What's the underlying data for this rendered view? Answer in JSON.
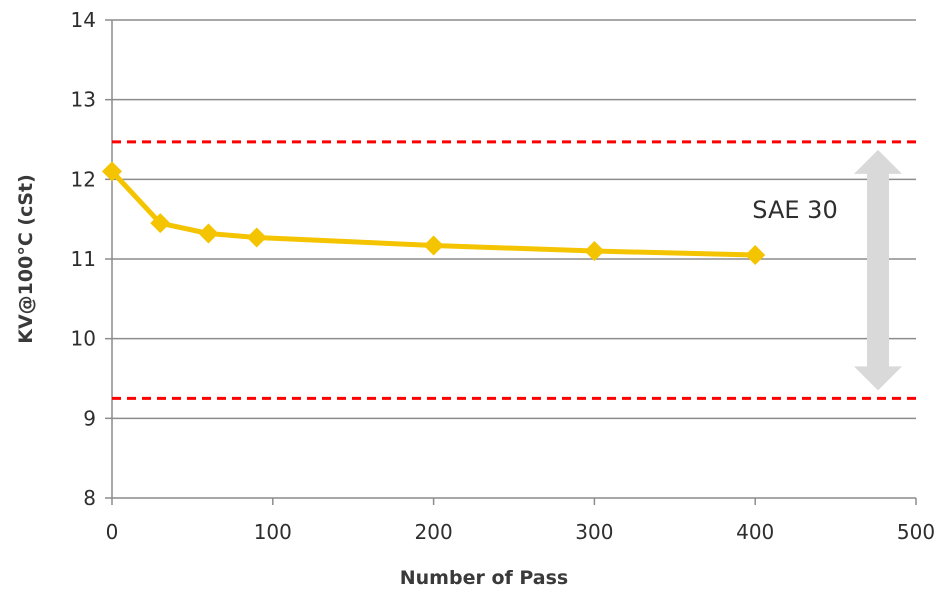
{
  "chart_data": {
    "type": "line",
    "xlabel": "Number of Pass",
    "ylabel": "KV@100°C (cSt)",
    "xlim": [
      0,
      500
    ],
    "ylim": [
      8,
      14
    ],
    "x_ticks": [
      "0",
      "100",
      "200",
      "300",
      "400",
      "500"
    ],
    "y_ticks": [
      "8",
      "9",
      "10",
      "11",
      "12",
      "13",
      "14"
    ],
    "grid": "horizontal",
    "series": [
      {
        "x": [
          0,
          30,
          60,
          90,
          200,
          300,
          400
        ],
        "values": [
          12.1,
          11.45,
          11.32,
          11.27,
          11.17,
          11.1,
          11.05
        ],
        "color": "#f5c400",
        "marker": "diamond"
      }
    ],
    "reference_lines": [
      {
        "y": 12.47,
        "color": "#ff0000",
        "style": "dashed"
      },
      {
        "y": 9.25,
        "color": "#ff0000",
        "style": "dashed"
      }
    ],
    "annotations": [
      {
        "text": "SAE 30",
        "type": "double-arrow",
        "from": 12.47,
        "to": 9.25,
        "color": "#d9d9d9"
      }
    ]
  }
}
